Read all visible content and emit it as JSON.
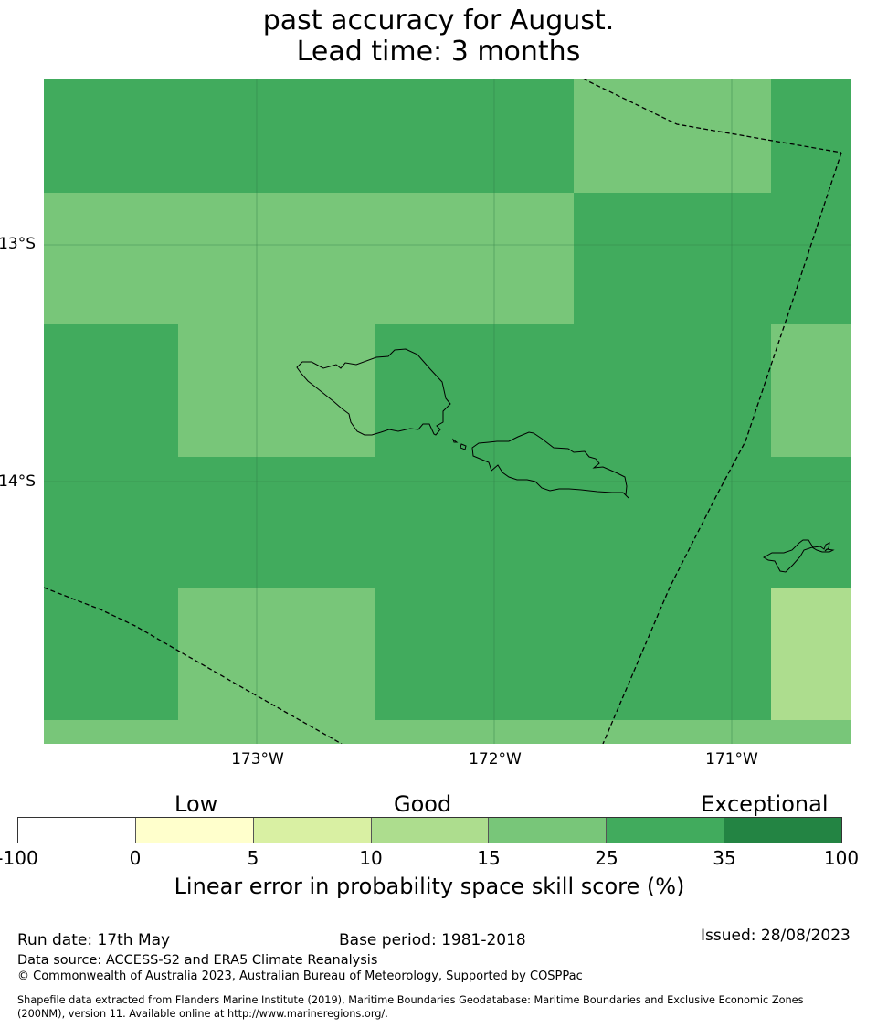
{
  "title": {
    "line1": "past accuracy for August.",
    "line2": "Lead time: 3 months"
  },
  "map": {
    "lat_labels": [
      "13°S",
      "14°S"
    ],
    "lon_labels": [
      "173°W",
      "172°W",
      "171°W"
    ],
    "colors": {
      "skill_25_35": "#41ab5d",
      "skill_15_25": "#78c679",
      "skill_10_15": "#addd8e",
      "gridline": "#2f7a44",
      "coastline": "#000000",
      "boundary": "#000000"
    }
  },
  "legend": {
    "categories": [
      "Low",
      "Good",
      "Exceptional"
    ],
    "ticks": [
      "-100",
      "0",
      "5",
      "10",
      "15",
      "25",
      "35",
      "100"
    ],
    "colors": [
      "#ffffff",
      "#ffffcc",
      "#d9f0a3",
      "#addd8e",
      "#78c679",
      "#41ab5d",
      "#238443"
    ],
    "caption": "Linear error in probability space skill score (%)"
  },
  "footer": {
    "run_date": "Run date: 17th May",
    "base_period": "Base period: 1981-2018",
    "issued": "Issued: 28/08/2023",
    "data_source": "Data source: ACCESS-S2 and ERA5 Climate Reanalysis",
    "copyright": "© Commonwealth of Australia 2023, Australian Bureau of Meteorology, Supported by COSPPac",
    "shapefile_line1": "Shapefile data extracted from Flanders Marine Institute (2019), Maritime Boundaries Geodatabase: Maritime Boundaries and Exclusive Economic Zones",
    "shapefile_line2": "(200NM), version 11. Available online at http://www.marineregions.org/."
  }
}
